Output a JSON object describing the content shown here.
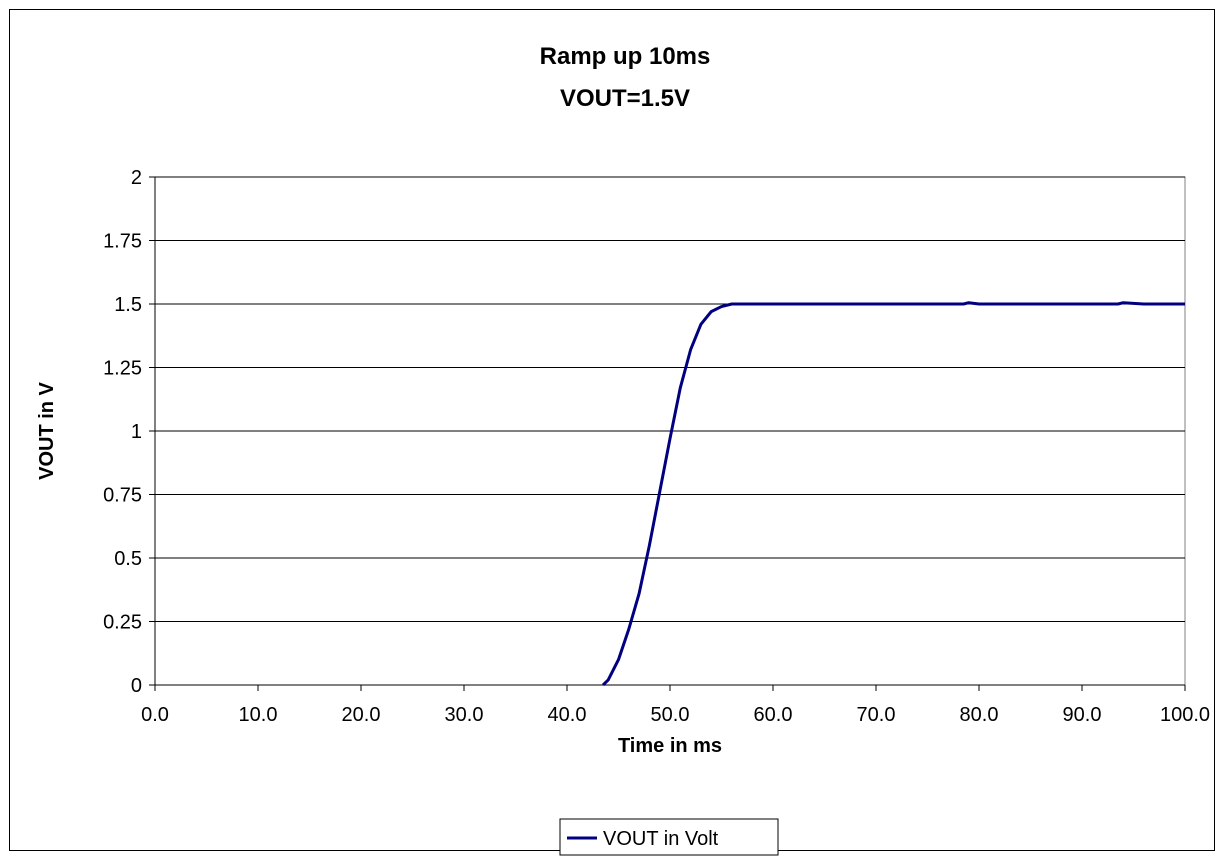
{
  "chart_data": {
    "type": "line",
    "title_lines": [
      "Ramp up 10ms",
      "VOUT=1.5V"
    ],
    "xlabel": "Time in ms",
    "ylabel": "VOUT in V",
    "xlim": [
      0,
      100
    ],
    "ylim": [
      0,
      2
    ],
    "x_ticks": [
      "0.0",
      "10.0",
      "20.0",
      "30.0",
      "40.0",
      "50.0",
      "60.0",
      "70.0",
      "80.0",
      "90.0",
      "100.0"
    ],
    "y_ticks": [
      "0",
      "0.25",
      "0.5",
      "0.75",
      "1",
      "1.25",
      "1.5",
      "1.75",
      "2"
    ],
    "grid": "horizontal",
    "legend_position": "bottom",
    "series": [
      {
        "name": "VOUT in Volt",
        "color": "#000080",
        "x": [
          43.5,
          44.0,
          45.0,
          46.0,
          47.0,
          48.0,
          49.0,
          50.0,
          51.0,
          52.0,
          53.0,
          54.0,
          55.0,
          56.0,
          60.0,
          70.0,
          78.5,
          79.0,
          80.0,
          90.0,
          93.5,
          94.0,
          96.0,
          100.0
        ],
        "y": [
          0.0,
          0.02,
          0.1,
          0.22,
          0.36,
          0.55,
          0.76,
          0.97,
          1.17,
          1.32,
          1.42,
          1.47,
          1.49,
          1.5,
          1.5,
          1.5,
          1.5,
          1.505,
          1.5,
          1.5,
          1.5,
          1.505,
          1.5,
          1.5
        ]
      }
    ]
  }
}
